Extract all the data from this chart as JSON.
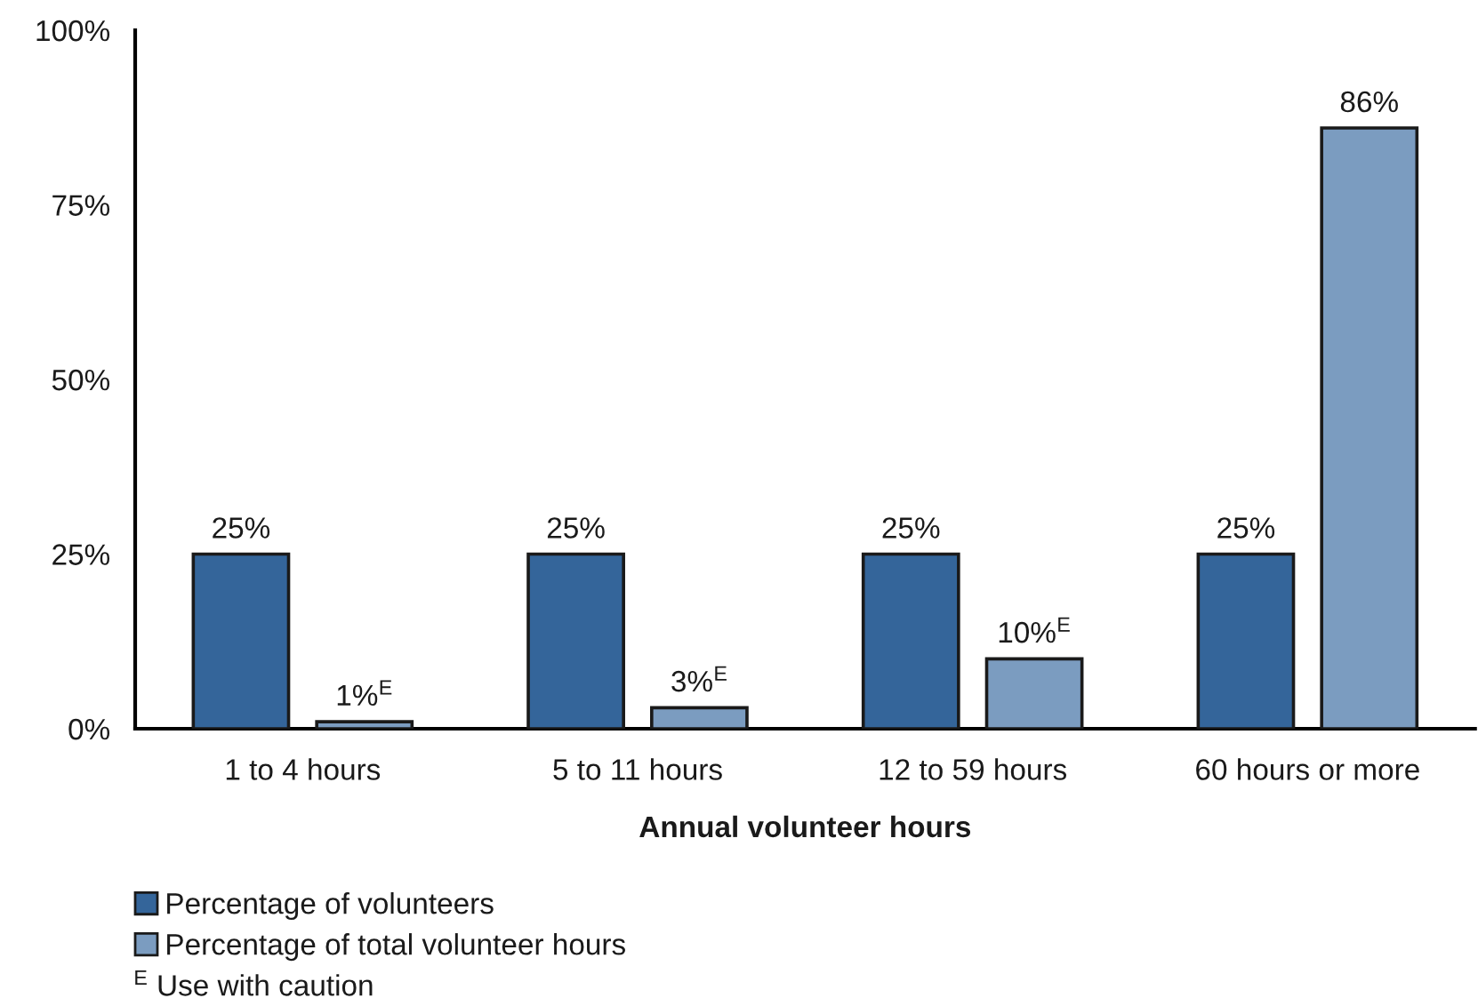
{
  "chart_data": {
    "type": "bar",
    "xlabel": "Annual volunteer hours",
    "categories": [
      "1 to 4 hours",
      "5 to 11 hours",
      "12 to 59 hours",
      "60 hours or more"
    ],
    "series": [
      {
        "name": "Percentage of volunteers",
        "color": "#34659a",
        "values": [
          25,
          25,
          25,
          25
        ],
        "value_labels": [
          "25%",
          "25%",
          "25%",
          "25%"
        ]
      },
      {
        "name": "Percentage of total volunteer hours",
        "color": "#7b9cc0",
        "values": [
          1,
          3,
          10,
          86
        ],
        "value_labels": [
          "1%$^{E}$",
          "3%$^{E}$",
          "10%$^{E}$",
          "86%"
        ]
      }
    ],
    "ylim": [
      0,
      100
    ],
    "yticks": [
      {
        "value": 0,
        "label": "0%"
      },
      {
        "value": 25,
        "label": "25%"
      },
      {
        "value": 50,
        "label": "50%"
      },
      {
        "value": 75,
        "label": "75%"
      },
      {
        "value": 100,
        "label": "100%"
      }
    ],
    "grid": false,
    "legend": "bottom left",
    "annotations": [
      "$^{E}$ Use with caution"
    ]
  }
}
